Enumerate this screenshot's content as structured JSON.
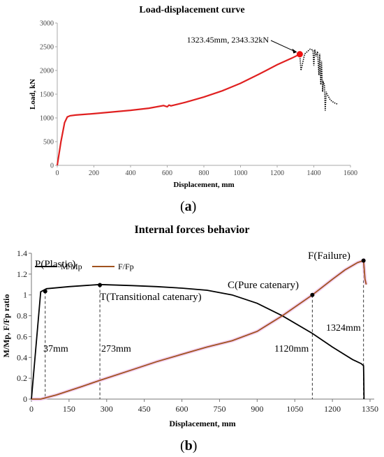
{
  "chart_data": [
    {
      "type": "line",
      "title": "Load-displacement curve",
      "xlabel": "Displacement, mm",
      "ylabel": "Load, kN",
      "xlim": [
        0,
        1600
      ],
      "ylim": [
        0,
        3000
      ],
      "x_ticks": [
        "0",
        "200",
        "400",
        "600",
        "800",
        "1000",
        "1200",
        "1400",
        "1600"
      ],
      "y_ticks": [
        "0",
        "500",
        "1000",
        "1500",
        "2000",
        "2500",
        "3000"
      ],
      "grid": false,
      "series": [
        {
          "color": "#e02020",
          "style": "solid",
          "x": [
            0,
            20,
            40,
            55,
            70,
            100,
            200,
            300,
            400,
            500,
            580,
            600,
            610,
            620,
            700,
            800,
            900,
            1000,
            1100,
            1200,
            1280,
            1323.45
          ],
          "y": [
            0,
            500,
            900,
            1020,
            1045,
            1060,
            1090,
            1125,
            1160,
            1205,
            1260,
            1235,
            1270,
            1255,
            1330,
            1440,
            1570,
            1730,
            1920,
            2120,
            2260,
            2343.32
          ]
        },
        {
          "color": "#000000",
          "style": "dotted",
          "x": [
            1323,
            1330,
            1350,
            1380,
            1395,
            1400,
            1405,
            1412,
            1420,
            1428,
            1432,
            1438,
            1442,
            1448,
            1452,
            1458,
            1462,
            1468,
            1472,
            1478,
            1490,
            1510,
            1530
          ],
          "y": [
            2343,
            2000,
            2350,
            2450,
            2430,
            2100,
            2440,
            2300,
            2400,
            1900,
            2350,
            1700,
            2200,
            1550,
            1750,
            1700,
            1150,
            1550,
            1500,
            1460,
            1380,
            1320,
            1290
          ]
        }
      ],
      "annotations": [
        {
          "text": "1323.45mm, 2343.32kN",
          "x": 1323.45,
          "y": 2343.32,
          "marker": "point",
          "arrow": true
        }
      ]
    },
    {
      "type": "line",
      "title": "Internal forces behavior",
      "xlabel": "Displacement, mm",
      "ylabel": "M/Mp, F/Fp ratio",
      "xlim": [
        0,
        1350
      ],
      "ylim": [
        0,
        1.4
      ],
      "x_ticks": [
        "0",
        "150",
        "300",
        "450",
        "600",
        "750",
        "900",
        "1050",
        "1200",
        "1350"
      ],
      "y_ticks": [
        "0",
        "0.2",
        "0.4",
        "0.6",
        "0.8",
        "1",
        "1.2",
        "1.4"
      ],
      "legend_position": "top-left",
      "series": [
        {
          "name": "M/Mp",
          "color": "#000000",
          "x": [
            0,
            37,
            60,
            150,
            273,
            400,
            500,
            600,
            700,
            800,
            900,
            1000,
            1120,
            1200,
            1280,
            1315,
            1324,
            1325,
            1326
          ],
          "y": [
            0,
            1.03,
            1.06,
            1.08,
            1.1,
            1.09,
            1.08,
            1.065,
            1.045,
            1.0,
            0.92,
            0.8,
            0.63,
            0.5,
            0.38,
            0.34,
            0.32,
            0.22,
            0.0
          ]
        },
        {
          "name": "F/Fp",
          "color": "#a0521e",
          "x": [
            0,
            37,
            100,
            200,
            273,
            400,
            500,
            600,
            700,
            800,
            900,
            1000,
            1120,
            1200,
            1250,
            1300,
            1324,
            1330,
            1335
          ],
          "y": [
            0,
            0.0,
            0.04,
            0.12,
            0.18,
            0.28,
            0.36,
            0.43,
            0.5,
            0.56,
            0.65,
            0.8,
            1.0,
            1.15,
            1.24,
            1.31,
            1.33,
            1.15,
            1.1
          ]
        }
      ],
      "annotations": [
        {
          "label": "P(Plastic)",
          "x": 55,
          "y": 1.035,
          "guide_label": "37mm"
        },
        {
          "label": "T(Transitional catenary)",
          "x": 273,
          "y": 1.095,
          "guide_label": "273mm"
        },
        {
          "label": "C(Pure catenary)",
          "x": 1120,
          "y": 1.0,
          "guide_label": "1120mm"
        },
        {
          "label": "F(Failure)",
          "x": 1324,
          "y": 1.33,
          "guide_label": "1324mm"
        }
      ]
    }
  ],
  "captions": {
    "a": "(a)",
    "a_letter": "a",
    "b": "(b)",
    "b_letter": "b"
  }
}
